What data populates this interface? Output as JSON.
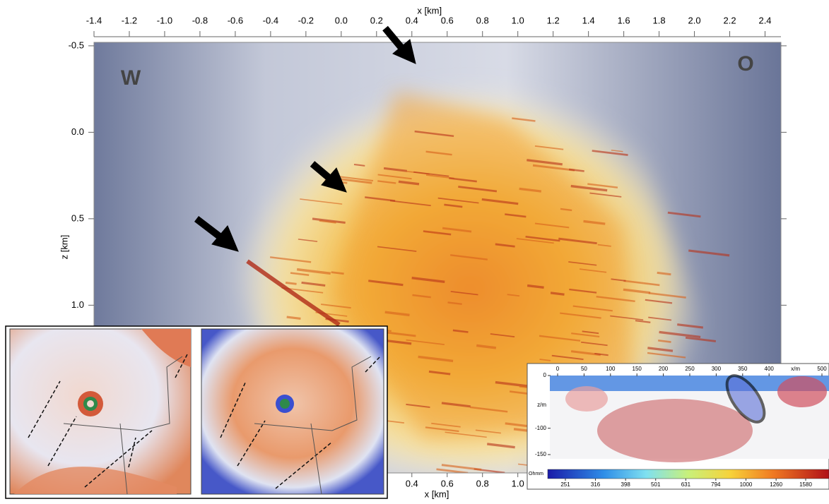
{
  "main_section": {
    "x_axis_label": "x [km]",
    "xlim": [
      -1.4,
      2.49
    ],
    "xticks": [
      -1.4,
      -1.2,
      {
        "value": -1.0,
        "label": "-1.0"
      },
      -0.8,
      -0.6,
      -0.4,
      -0.2,
      {
        "value": 0.0,
        "label": "0.0"
      },
      0.2,
      0.4,
      0.6,
      0.8,
      {
        "value": 1.0,
        "label": "1.0"
      },
      1.2,
      1.4,
      1.6,
      1.8,
      {
        "value": 2.0,
        "label": "2.0"
      },
      2.2,
      2.4
    ],
    "z_axis_label": "z [km]",
    "zlim": [
      -0.52,
      1.97
    ],
    "zticks": [
      -0.5,
      {
        "value": 0.0,
        "label": "0.0"
      },
      0.5,
      {
        "value": 1.0,
        "label": "1.0"
      }
    ],
    "bottom_x_axis_label": "x [km]",
    "bottom_xticks": [
      0.4,
      0.6,
      0.8,
      {
        "value": 1.0,
        "label": "1.0"
      }
    ],
    "west_label": "W",
    "east_label": "O"
  },
  "resistivity_section": {
    "xlim": [
      0,
      500
    ],
    "xticks": [
      0,
      50,
      100,
      150,
      200,
      250,
      300,
      350,
      400,
      500
    ],
    "x_unit": "x/m",
    "zlim": [
      0,
      -150
    ],
    "zticks": [
      0,
      -100,
      -150
    ],
    "z_unit": "z/m",
    "colorbar_unit": "Ohmm",
    "colorbar_ticks": [
      251,
      316,
      398,
      501,
      631,
      794,
      1000,
      1260,
      1580
    ]
  }
}
